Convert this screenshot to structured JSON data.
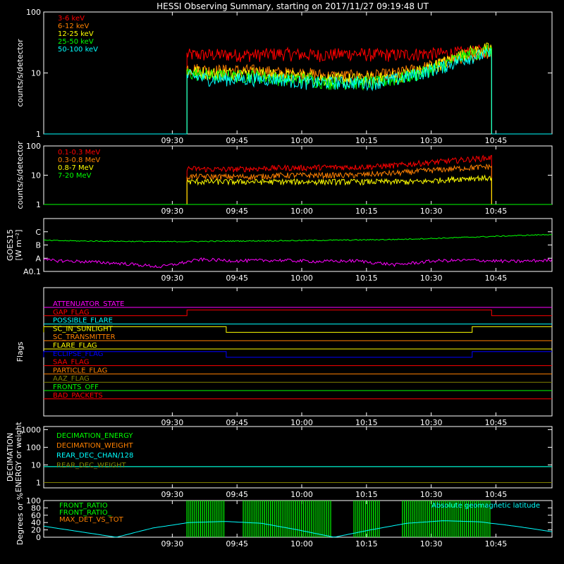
{
  "title": "HESSI Observing Summary, starting on 2017/11/27 09:19:48 UT",
  "time_axis": {
    "start_min": -19.8,
    "end_min": 98,
    "tick_values": [
      10,
      25,
      40,
      55,
      70,
      85
    ],
    "tick_labels": [
      "09:30",
      "09:45",
      "10:00",
      "10:15",
      "10:30",
      "10:45"
    ]
  },
  "colors": {
    "red": "#ff0000",
    "orange": "#ff8000",
    "yellow": "#ffff00",
    "green": "#00ff00",
    "cyan": "#00ffff",
    "magenta": "#ff00ff",
    "blue": "#0000ff",
    "olive": "#808000",
    "axis": "#ffffff",
    "background": "#000000"
  },
  "chart_data": [
    {
      "id": "lo-energy",
      "type": "line",
      "ylabel": "counts/s/detector",
      "yscale": "log",
      "ylim": [
        1,
        100
      ],
      "ytick_values": [
        1,
        10,
        100
      ],
      "ytick_labels": [
        "1",
        "10",
        "100"
      ],
      "data_range": [
        13.4,
        84
      ],
      "series": [
        {
          "name": "3-6 keV",
          "color": "#ff0000",
          "values": [
            20,
            20,
            20,
            20,
            21,
            20,
            20,
            21,
            20,
            20,
            21,
            21,
            22,
            24
          ]
        },
        {
          "name": "6-12 keV",
          "color": "#ff8000",
          "values": [
            12,
            11,
            11,
            11,
            10,
            10,
            9,
            9,
            9,
            10,
            12,
            15,
            20,
            23
          ]
        },
        {
          "name": "12-25 keV",
          "color": "#ffff00",
          "values": [
            11,
            10,
            10,
            10,
            9,
            9,
            8,
            8,
            8,
            9,
            11,
            15,
            22,
            26
          ]
        },
        {
          "name": "25-50 keV",
          "color": "#00ff00",
          "values": [
            10,
            9,
            9,
            9,
            8,
            8,
            7,
            7,
            7,
            8,
            10,
            14,
            20,
            24
          ]
        },
        {
          "name": "50-100 keV",
          "color": "#00ffff",
          "values": [
            9,
            8,
            8,
            8,
            8,
            7,
            7,
            7,
            7,
            8,
            10,
            13,
            18,
            21
          ]
        }
      ]
    },
    {
      "id": "hi-energy",
      "type": "line",
      "ylabel": "counts/s/detector",
      "yscale": "log",
      "ylim": [
        1,
        100
      ],
      "ytick_values": [
        1,
        10,
        100
      ],
      "ytick_labels": [
        "1",
        "10",
        "100"
      ],
      "data_range": [
        13.4,
        84
      ],
      "series": [
        {
          "name": "0.1-0.3 MeV",
          "color": "#ff0000",
          "values": [
            17,
            16,
            16,
            17,
            18,
            18,
            19,
            19,
            20,
            22,
            26,
            30,
            35,
            40
          ]
        },
        {
          "name": "0.3-0.8 MeV",
          "color": "#ff8000",
          "values": [
            9,
            9,
            9,
            9,
            10,
            10,
            10,
            10,
            11,
            12,
            14,
            16,
            18,
            20
          ]
        },
        {
          "name": "0.8-7 MeV",
          "color": "#ffff00",
          "values": [
            6,
            6,
            6,
            6,
            6,
            6,
            6,
            6,
            6,
            6,
            6,
            7,
            8,
            8
          ]
        },
        {
          "name": "7-20 MeV",
          "color": "#00ff00",
          "values": [
            1,
            1
          ]
        }
      ]
    },
    {
      "id": "goes",
      "type": "line",
      "ylabel_lines": [
        "GOES15",
        "[W m⁻²]"
      ],
      "ylim": [
        0,
        4
      ],
      "ytick_values": [
        0,
        1,
        2,
        3,
        4
      ],
      "ytick_labels": [
        "A0.1",
        "A",
        "B",
        "C",
        ""
      ],
      "series": [
        {
          "name": "",
          "color": "#00ff00",
          "values": [
            2.35,
            2.3,
            2.28,
            2.25,
            2.27,
            2.3,
            2.32,
            2.35,
            2.38,
            2.42,
            2.5,
            2.6,
            2.7,
            2.8
          ]
        },
        {
          "name": "",
          "color": "#ff00ff",
          "values": [
            0.85,
            0.75,
            0.6,
            0.35,
            0.9,
            0.8,
            0.85,
            0.75,
            0.8,
            0.5,
            0.8,
            0.85,
            0.75,
            0.85
          ]
        }
      ]
    },
    {
      "id": "flags",
      "type": "line",
      "ylabel": "Flags",
      "flags": [
        {
          "name": "ATTENUATOR_STATE",
          "color": "#ff00ff",
          "steps": []
        },
        {
          "name": "GAP_FLAG",
          "color": "#ff0000",
          "steps": [
            [
              13.4,
              1
            ],
            [
              84,
              0
            ]
          ]
        },
        {
          "name": "POSSIBLE_FLARE",
          "color": "#00ffff",
          "steps": []
        },
        {
          "name": "SC_IN_SUNLIGHT",
          "color": "#ffff00",
          "steps": [
            [
              -19.8,
              1
            ],
            [
              22.5,
              0
            ],
            [
              79.5,
              1
            ]
          ]
        },
        {
          "name": "SC_TRANSMITTER",
          "color": "#ff8000",
          "steps": []
        },
        {
          "name": "FLARE_FLAG",
          "color": "#ffff00",
          "steps": []
        },
        {
          "name": "ECLIPSE_FLAG",
          "color": "#0000ff",
          "steps": [
            [
              -19.8,
              1
            ],
            [
              22.5,
              0
            ],
            [
              79.5,
              1
            ]
          ]
        },
        {
          "name": "SAA_FLAG",
          "color": "#ff0000",
          "steps": []
        },
        {
          "name": "PARTICLE_FLAG",
          "color": "#ff8000",
          "steps": []
        },
        {
          "name": "AAZ_FLAG",
          "color": "#808000",
          "steps": []
        },
        {
          "name": "FRONTS_OFF",
          "color": "#00ff00",
          "steps": []
        },
        {
          "name": "BAD_PACKETS",
          "color": "#ff0000",
          "steps": []
        }
      ]
    },
    {
      "id": "decimation",
      "type": "line",
      "ylabel_lines": [
        "DECIMATION",
        "ENERGY or weight"
      ],
      "yscale": "log",
      "ylim": [
        0.5,
        1500
      ],
      "ytick_values": [
        1,
        10,
        100,
        1000
      ],
      "ytick_labels": [
        "1",
        "10",
        "100",
        "1000"
      ],
      "series": [
        {
          "name": "DECIMATION_ENERGY",
          "color": "#00ff00",
          "values": [
            8
          ]
        },
        {
          "name": "DECIMATION_WEIGHT",
          "color": "#ff8000",
          "values": [
            1
          ]
        },
        {
          "name": "REAR_DEC_CHAN/128",
          "color": "#00ffff",
          "values": [
            8
          ]
        },
        {
          "name": "REAR_DEC_WEIGHT",
          "color": "#808000",
          "values": [
            1
          ]
        }
      ]
    },
    {
      "id": "ratios",
      "type": "line",
      "ylabel": "Degrees or %",
      "ylim": [
        0,
        100
      ],
      "ytick_values": [
        0,
        20,
        40,
        60,
        80,
        100
      ],
      "ytick_labels": [
        "0",
        "20",
        "40",
        "60",
        "80",
        "100"
      ],
      "annotation": "Absolute geomagnetic latitude",
      "series": [
        {
          "name": "FRONT_RATIO",
          "color": "#00ff00",
          "values": [
            100
          ]
        },
        {
          "name": "FRONT_RATIO_",
          "color": "#00ff00",
          "values": [
            100
          ]
        },
        {
          "name": "MAX_DET_VS_TOT",
          "color": "#ff8000",
          "values": [
            0
          ]
        },
        {
          "name": "",
          "color": "#00ffff",
          "values": [
            30,
            15,
            0,
            25,
            40,
            43,
            38,
            20,
            0,
            20,
            38,
            45,
            42,
            30,
            15
          ]
        }
      ]
    }
  ]
}
